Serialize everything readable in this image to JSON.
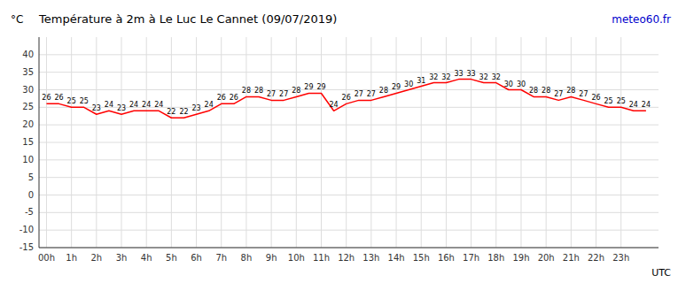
{
  "chart_data": {
    "type": "line",
    "title": "Température à 2m à Le Luc Le Cannet (09/07/2019)",
    "y_label": "°C",
    "x_label": "UTC",
    "annotations": [
      "meteo60.fr"
    ],
    "x": [
      0,
      0.5,
      1,
      1.5,
      2,
      2.5,
      3,
      3.5,
      4,
      4.5,
      5,
      5.5,
      6,
      6.5,
      7,
      7.5,
      8,
      8.5,
      9,
      9.5,
      10,
      10.5,
      11,
      11.5,
      12,
      12.5,
      13,
      13.5,
      14,
      14.5,
      15,
      15.5,
      16,
      16.5,
      17,
      17.5,
      18,
      18.5,
      19,
      19.5,
      20,
      20.5,
      21,
      21.5,
      22,
      22.5,
      23,
      23.5,
      24
    ],
    "values": [
      26,
      26,
      25,
      25,
      23,
      24,
      23,
      24,
      24,
      24,
      22,
      22,
      23,
      24,
      26,
      26,
      28,
      28,
      27,
      27,
      28,
      29,
      29,
      24,
      26,
      27,
      27,
      28,
      29,
      30,
      31,
      32,
      32,
      33,
      33,
      32,
      32,
      30,
      30,
      28,
      28,
      27,
      28,
      27,
      26,
      25,
      25,
      24,
      24
    ],
    "color": "#ff0000",
    "xlim": [
      -0.3,
      24.5
    ],
    "xticks": [
      {
        "value": 0,
        "label": "00h"
      },
      {
        "value": 1,
        "label": "1h"
      },
      {
        "value": 2,
        "label": "2h"
      },
      {
        "value": 3,
        "label": "3h"
      },
      {
        "value": 4,
        "label": "4h"
      },
      {
        "value": 5,
        "label": "5h"
      },
      {
        "value": 6,
        "label": "6h"
      },
      {
        "value": 7,
        "label": "7h"
      },
      {
        "value": 8,
        "label": "8h"
      },
      {
        "value": 9,
        "label": "9h"
      },
      {
        "value": 10,
        "label": "10h"
      },
      {
        "value": 11,
        "label": "11h"
      },
      {
        "value": 12,
        "label": "12h"
      },
      {
        "value": 13,
        "label": "13h"
      },
      {
        "value": 14,
        "label": "14h"
      },
      {
        "value": 15,
        "label": "15h"
      },
      {
        "value": 16,
        "label": "16h"
      },
      {
        "value": 17,
        "label": "17h"
      },
      {
        "value": 18,
        "label": "18h"
      },
      {
        "value": 19,
        "label": "19h"
      },
      {
        "value": 20,
        "label": "20h"
      },
      {
        "value": 21,
        "label": "21h"
      },
      {
        "value": 22,
        "label": "22h"
      },
      {
        "value": 23,
        "label": "23h"
      }
    ],
    "ylim": [
      -15,
      45
    ],
    "yticks": [
      -15,
      -10,
      -5,
      0,
      5,
      10,
      15,
      20,
      25,
      30,
      35,
      40
    ],
    "grid": true,
    "data_labels": true
  }
}
